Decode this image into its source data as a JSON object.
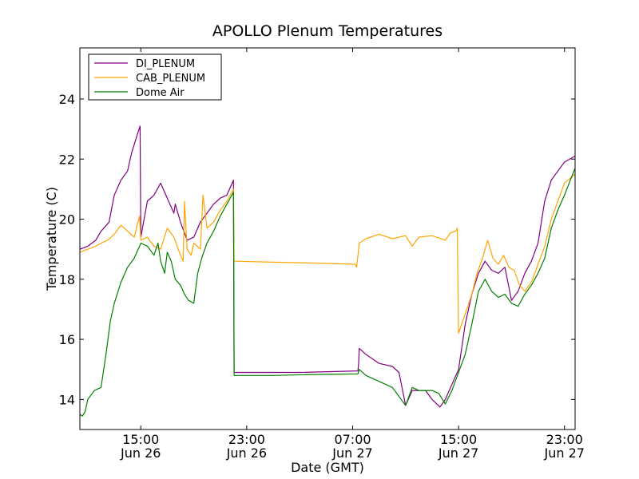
{
  "chart_data": {
    "type": "line",
    "title": "APOLLO Plenum Temperatures",
    "xlabel": "Date (GMT)",
    "ylabel": "Temperature (C)",
    "x_unit": "hours since Jun 26 00:00 GMT",
    "xlim": [
      10.4,
      47.8
    ],
    "ylim": [
      13.0,
      25.7
    ],
    "y_ticks": [
      14,
      16,
      18,
      20,
      22,
      24
    ],
    "x_ticks": [
      {
        "value": 15,
        "time": "15:00",
        "date": "Jun 26"
      },
      {
        "value": 23,
        "time": "23:00",
        "date": "Jun 26"
      },
      {
        "value": 31,
        "time": "07:00",
        "date": "Jun 27"
      },
      {
        "value": 39,
        "time": "15:00",
        "date": "Jun 27"
      },
      {
        "value": 47,
        "time": "23:00",
        "date": "Jun 27"
      }
    ],
    "legend_position": "top-left",
    "series": [
      {
        "name": "DI_PLENUM",
        "color": "#800080",
        "x": [
          10.4,
          11.0,
          11.6,
          12.0,
          12.6,
          13.0,
          13.5,
          14.0,
          14.3,
          14.8,
          14.95,
          15.0,
          15.5,
          16.0,
          16.5,
          17.0,
          17.5,
          17.6,
          18.0,
          18.5,
          19.0,
          19.5,
          20.0,
          20.5,
          21.0,
          21.5,
          22.0,
          22.05,
          27.0,
          31.4,
          31.45,
          31.5,
          32.0,
          33.0,
          34.0,
          34.5,
          35.0,
          35.5,
          36.0,
          36.5,
          37.0,
          37.6,
          38.0,
          38.5,
          39.0,
          39.5,
          40.0,
          40.5,
          41.0,
          41.5,
          42.0,
          42.5,
          43.0,
          43.5,
          44.0,
          44.5,
          45.0,
          45.5,
          46.0,
          46.5,
          47.0,
          47.8
        ],
        "y": [
          19.0,
          19.1,
          19.3,
          19.6,
          19.9,
          20.8,
          21.3,
          21.6,
          22.2,
          22.9,
          23.1,
          19.4,
          20.6,
          20.8,
          21.2,
          20.7,
          20.2,
          20.5,
          19.9,
          19.3,
          19.4,
          19.9,
          20.2,
          20.5,
          20.7,
          20.8,
          21.3,
          14.9,
          14.9,
          14.95,
          15.2,
          15.7,
          15.5,
          15.2,
          15.1,
          14.9,
          13.8,
          14.3,
          14.3,
          14.3,
          14.0,
          13.75,
          14.0,
          14.5,
          15.0,
          16.5,
          17.5,
          18.2,
          18.6,
          18.3,
          18.2,
          18.4,
          17.3,
          17.6,
          18.2,
          18.6,
          19.2,
          20.6,
          21.3,
          21.6,
          21.9,
          22.1
        ]
      },
      {
        "name": "CAB_PLENUM",
        "color": "#ffa500",
        "x": [
          10.4,
          11.0,
          11.6,
          12.0,
          12.5,
          13.0,
          13.5,
          14.0,
          14.5,
          14.9,
          15.0,
          15.5,
          16.0,
          16.5,
          17.0,
          17.5,
          18.0,
          18.2,
          18.3,
          18.5,
          18.8,
          19.0,
          19.5,
          19.7,
          20.0,
          20.5,
          21.0,
          21.5,
          22.0,
          22.05,
          25.0,
          28.0,
          31.2,
          31.3,
          31.5,
          32.0,
          33.0,
          34.0,
          35.0,
          35.5,
          36.0,
          37.0,
          38.0,
          38.4,
          38.8,
          38.9,
          39.0,
          39.3,
          39.7,
          40.0,
          40.4,
          40.8,
          41.2,
          41.6,
          42.0,
          42.4,
          42.8,
          43.2,
          43.6,
          44.0,
          44.5,
          45.0,
          45.5,
          46.0,
          46.5,
          47.0,
          47.8
        ],
        "y": [
          18.9,
          19.0,
          19.1,
          19.2,
          19.3,
          19.5,
          19.8,
          19.6,
          19.4,
          20.1,
          19.3,
          19.4,
          19.1,
          19.0,
          19.7,
          19.4,
          18.8,
          18.6,
          20.6,
          19.0,
          18.8,
          19.2,
          19.0,
          20.8,
          19.7,
          19.9,
          20.3,
          20.6,
          21.0,
          18.6,
          18.57,
          18.54,
          18.5,
          18.4,
          19.2,
          19.35,
          19.5,
          19.35,
          19.45,
          19.1,
          19.4,
          19.45,
          19.3,
          19.55,
          19.6,
          19.7,
          16.2,
          16.6,
          17.1,
          17.5,
          18.2,
          18.7,
          19.3,
          18.7,
          18.5,
          18.8,
          18.4,
          18.3,
          17.8,
          17.6,
          17.9,
          18.5,
          19.1,
          20.0,
          20.6,
          21.2,
          21.5
        ]
      },
      {
        "name": "Dome Air",
        "color": "#008000",
        "x": [
          10.4,
          10.6,
          10.8,
          11.0,
          11.5,
          12.0,
          12.4,
          12.7,
          13.0,
          13.5,
          14.0,
          14.5,
          15.0,
          15.5,
          16.0,
          16.3,
          16.5,
          16.8,
          17.0,
          17.3,
          17.6,
          18.0,
          18.3,
          18.6,
          19.0,
          19.3,
          19.6,
          20.0,
          20.5,
          21.0,
          21.5,
          22.0,
          22.05,
          25.0,
          28.0,
          31.4,
          31.5,
          32.0,
          33.0,
          34.0,
          35.0,
          35.5,
          36.0,
          37.0,
          37.5,
          38.0,
          38.5,
          39.0,
          39.5,
          40.0,
          40.5,
          41.0,
          41.5,
          42.0,
          42.5,
          43.0,
          43.5,
          44.0,
          44.5,
          45.0,
          45.5,
          46.0,
          46.5,
          47.0,
          47.8
        ],
        "y": [
          13.5,
          13.45,
          13.6,
          14.0,
          14.3,
          14.4,
          15.6,
          16.6,
          17.2,
          17.9,
          18.4,
          18.7,
          19.2,
          19.1,
          18.8,
          19.2,
          18.6,
          18.2,
          18.9,
          18.6,
          18.0,
          17.8,
          17.5,
          17.3,
          17.2,
          18.2,
          18.7,
          19.2,
          19.6,
          20.1,
          20.5,
          20.9,
          14.8,
          14.8,
          14.83,
          14.85,
          15.0,
          14.8,
          14.6,
          14.4,
          13.8,
          14.4,
          14.3,
          14.3,
          14.2,
          13.85,
          14.3,
          14.9,
          15.5,
          16.5,
          17.6,
          18.0,
          17.6,
          17.4,
          17.5,
          17.2,
          17.1,
          17.5,
          17.8,
          18.2,
          18.7,
          19.7,
          20.3,
          20.8,
          21.7
        ]
      }
    ]
  }
}
